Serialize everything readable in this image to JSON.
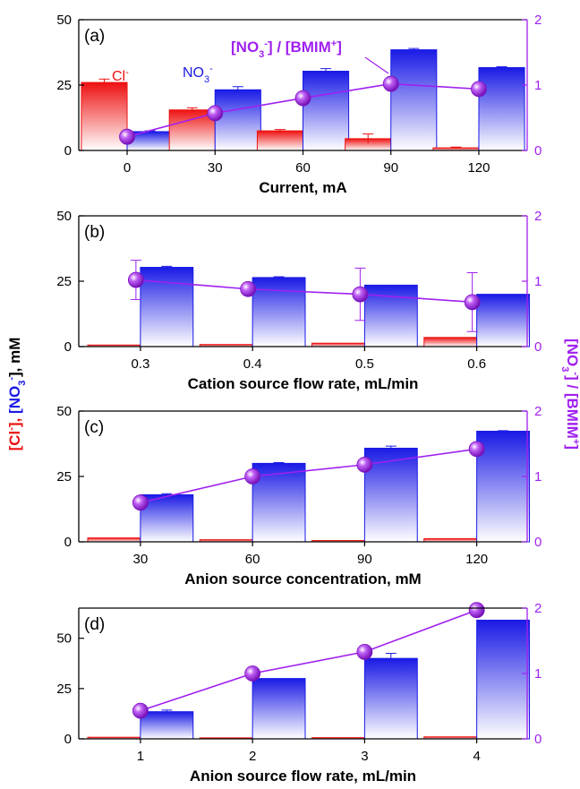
{
  "colors": {
    "cl": "#ee1111",
    "no3": "#1a1ae6",
    "ratio": "#a020f0",
    "axis": "#000000"
  },
  "ylabel_left": {
    "part1": "[Cl",
    "sup1": "-",
    "part2": "], ",
    "part3": "[NO",
    "sub3": "3",
    "sup3": "-",
    "part4": "], mM"
  },
  "ylabel_right": {
    "a": "[NO",
    "sub": "3",
    "sup": "-",
    "b": "] / [BMIM",
    "sup2": "+",
    "c": "]"
  },
  "annotations": {
    "cl": "Cl",
    "cl_sup": "-",
    "no3": "NO",
    "no3_sub": "3",
    "no3_sup": "-",
    "ratio_a": "[NO",
    "ratio_sub": "3",
    "ratio_sup": "-",
    "ratio_b": "] / [BMIM",
    "ratio_sup2": "+",
    "ratio_c": "]"
  },
  "chart_data": [
    {
      "type": "bar",
      "panel_label": "(a)",
      "xlabel": "Current, mA",
      "categories": [
        "0",
        "30",
        "60",
        "90",
        "120"
      ],
      "ylim": [
        0,
        50
      ],
      "yticks": [
        0,
        25,
        50
      ],
      "y2lim": [
        0,
        2
      ],
      "y2ticks": [
        0,
        1,
        2
      ],
      "series": [
        {
          "name": "Cl-",
          "values": [
            26,
            15.5,
            7.5,
            4.5,
            1
          ],
          "errors": [
            1.3,
            0.8,
            0.5,
            1.8,
            0.3
          ]
        },
        {
          "name": "NO3-",
          "values": [
            7.2,
            23.2,
            30.3,
            38.5,
            31.7
          ],
          "errors": [
            0.3,
            1.2,
            1.0,
            0.5,
            0.3
          ]
        },
        {
          "name": "[NO3-] / [BMIM+]",
          "values": [
            0.21,
            0.57,
            0.8,
            1.02,
            0.94
          ]
        }
      ]
    },
    {
      "type": "bar",
      "panel_label": "(b)",
      "xlabel": "Cation source flow rate, mL/min",
      "categories": [
        "0.3",
        "0.4",
        "0.5",
        "0.6"
      ],
      "ylim": [
        0,
        50
      ],
      "yticks": [
        0,
        25,
        50
      ],
      "y2lim": [
        0,
        2
      ],
      "y2ticks": [
        0,
        1,
        2
      ],
      "series": [
        {
          "name": "Cl-",
          "values": [
            0.6,
            0.8,
            1.3,
            3.5
          ],
          "errors": [
            0,
            0,
            0,
            0
          ]
        },
        {
          "name": "NO3-",
          "values": [
            30.3,
            26.4,
            23.5,
            20
          ],
          "errors": [
            0.4,
            0.3,
            0,
            0
          ]
        },
        {
          "name": "[NO3-] / [BMIM+]",
          "values": [
            1.02,
            0.88,
            0.8,
            0.68
          ],
          "errors": [
            0.3,
            0,
            0.4,
            0.45
          ]
        }
      ]
    },
    {
      "type": "bar",
      "panel_label": "(c)",
      "xlabel": "Anion source concentration, mM",
      "categories": [
        "30",
        "60",
        "90",
        "120"
      ],
      "ylim": [
        0,
        50
      ],
      "yticks": [
        0,
        25,
        50
      ],
      "y2lim": [
        0,
        2
      ],
      "y2ticks": [
        0,
        1,
        2
      ],
      "series": [
        {
          "name": "Cl-",
          "values": [
            1.5,
            0.8,
            0.5,
            1.2
          ],
          "errors": [
            0,
            0,
            0,
            0
          ]
        },
        {
          "name": "NO3-",
          "values": [
            18,
            30,
            35.8,
            42.3
          ],
          "errors": [
            0.4,
            0.3,
            0.8,
            0.2
          ]
        },
        {
          "name": "[NO3-] / [BMIM+]",
          "values": [
            0.6,
            1.0,
            1.18,
            1.42
          ]
        }
      ]
    },
    {
      "type": "bar",
      "panel_label": "(d)",
      "xlabel": "Anion source flow rate, mL/min",
      "categories": [
        "1",
        "2",
        "3",
        "4"
      ],
      "ylim": [
        0,
        65
      ],
      "yticks": [
        0,
        25,
        50
      ],
      "y2lim": [
        0,
        2
      ],
      "y2ticks": [
        0,
        1,
        2
      ],
      "series": [
        {
          "name": "Cl-",
          "values": [
            0.8,
            0.5,
            0.6,
            1
          ],
          "errors": [
            0,
            0,
            0,
            0
          ]
        },
        {
          "name": "NO3-",
          "values": [
            13.5,
            30,
            40,
            59
          ],
          "errors": [
            0.8,
            0,
            2.5,
            0
          ]
        },
        {
          "name": "[NO3-] / [BMIM+]",
          "values": [
            0.43,
            1.0,
            1.33,
            1.97
          ]
        }
      ]
    }
  ]
}
